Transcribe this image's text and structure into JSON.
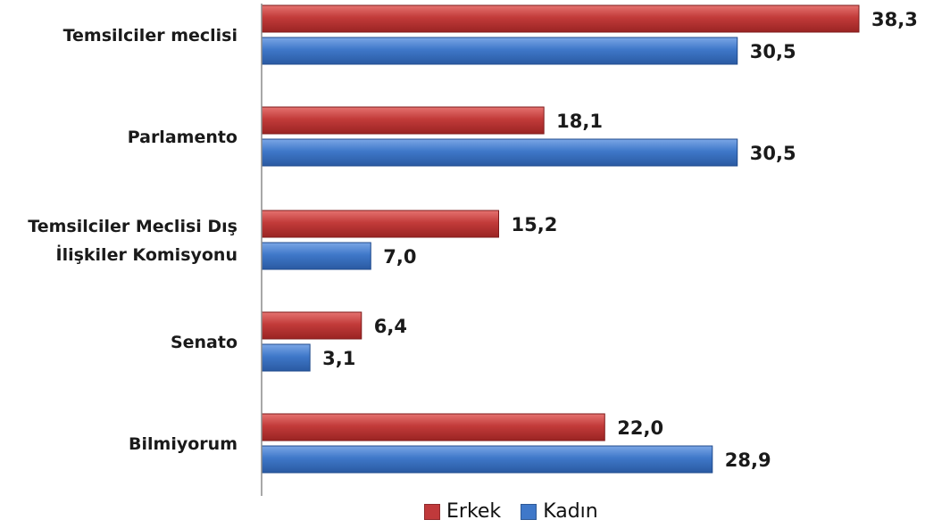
{
  "chart_data": {
    "type": "bar",
    "orientation": "horizontal",
    "categories": [
      [
        "Temsilciler meclisi"
      ],
      [
        "Parlamento"
      ],
      [
        "Temsilciler Meclisi Dış",
        "İlişkiler Komisyonu"
      ],
      [
        "Senato"
      ],
      [
        "Bilmiyorum"
      ]
    ],
    "series": [
      {
        "name": "Erkek",
        "values": [
          38.3,
          18.1,
          15.2,
          6.4,
          22.0
        ],
        "labels": [
          "38,3",
          "18,1",
          "15,2",
          "6,4",
          "22,0"
        ]
      },
      {
        "name": "Kadın",
        "values": [
          30.5,
          30.5,
          7.0,
          3.1,
          28.9
        ],
        "labels": [
          "30,5",
          "30,5",
          "7,0",
          "3,1",
          "28,9"
        ]
      }
    ],
    "title": "",
    "xlabel": "",
    "ylabel": "",
    "xlim": [
      0,
      38.3
    ],
    "grid": false,
    "legend_position": "bottom"
  },
  "colors": {
    "Erkek": "#c0393b",
    "Kadın": "#3f78c9"
  },
  "legend": {
    "items": [
      "Erkek",
      "Kadın"
    ]
  }
}
